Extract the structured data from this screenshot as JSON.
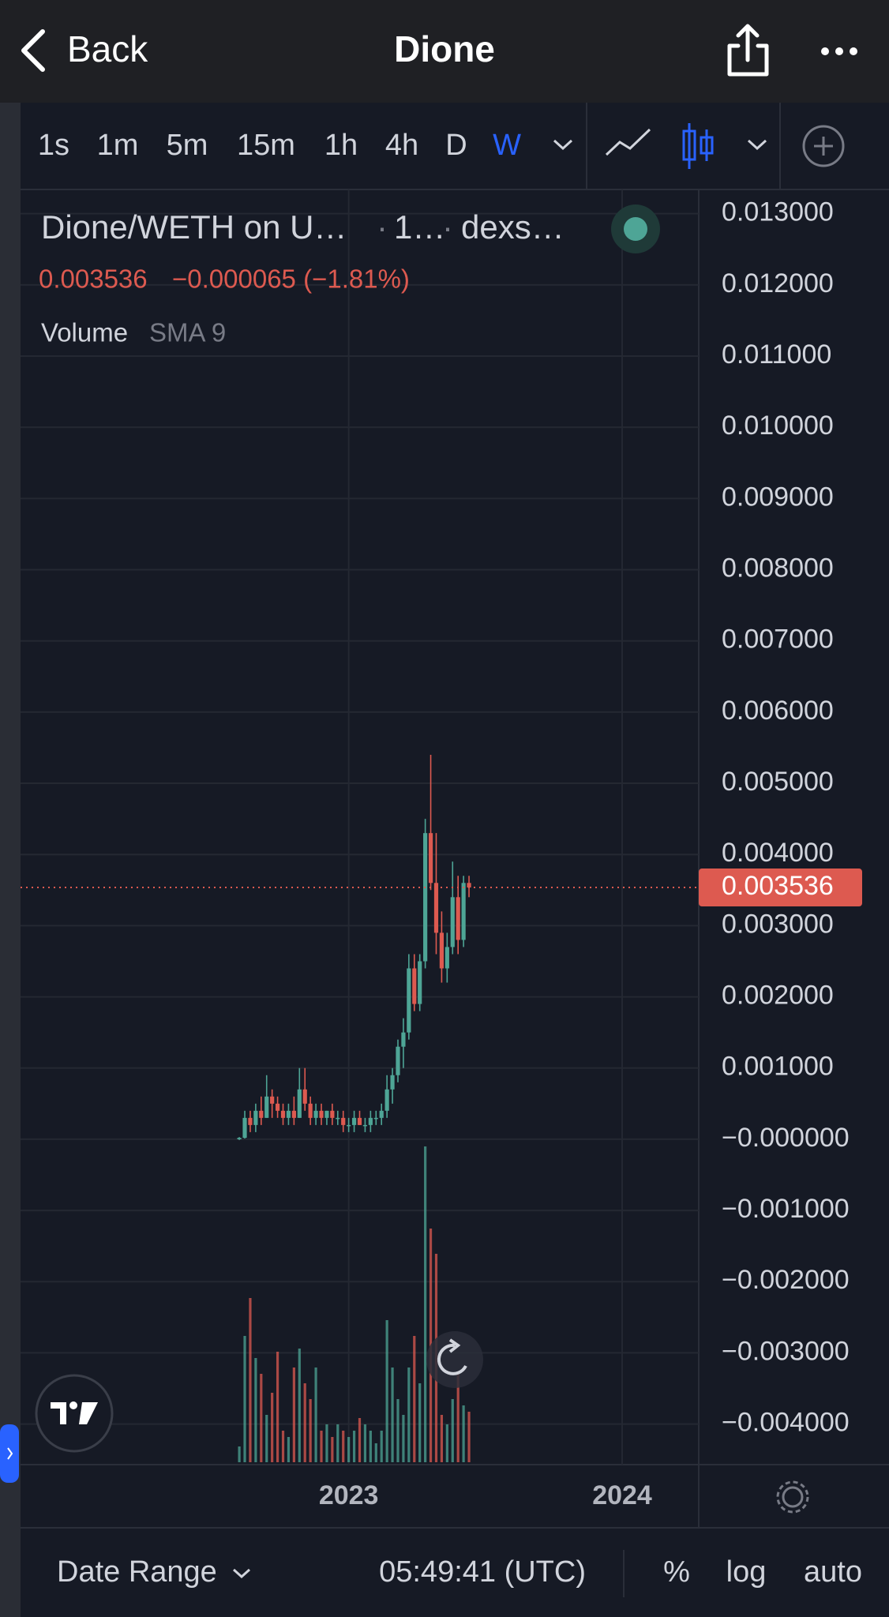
{
  "nav": {
    "back": "Back",
    "title": "Dione"
  },
  "toolbar": {
    "intervals": [
      "1s",
      "1m",
      "5m",
      "15m",
      "1h",
      "4h",
      "D",
      "W"
    ],
    "active_index": 7
  },
  "legend": {
    "symbol": "Dione/WETH on U…",
    "interval": "1…",
    "exchange": "dexs…",
    "change": "−0.000065 (−1.81%)",
    "indicator": "Volume",
    "indicator_params": "SMA 9"
  },
  "chart_data": {
    "type": "candlestick",
    "x": [
      2022.6,
      2022.62,
      2022.64,
      2022.66,
      2022.68,
      2022.7,
      2022.72,
      2022.74,
      2022.76,
      2022.78,
      2022.8,
      2022.82,
      2022.84,
      2022.86,
      2022.88,
      2022.9,
      2022.92,
      2022.94,
      2022.96,
      2022.98,
      2023.0,
      2023.02,
      2023.04,
      2023.06,
      2023.08,
      2023.1,
      2023.12,
      2023.14,
      2023.16,
      2023.18,
      2023.2,
      2023.22,
      2023.24,
      2023.26,
      2023.28,
      2023.3,
      2023.32,
      2023.34,
      2023.36,
      2023.38,
      2023.4,
      2023.42,
      2023.44
    ],
    "open": [
      0,
      2e-05,
      0.0003,
      0.0002,
      0.0004,
      0.0003,
      0.0006,
      0.0005,
      0.0004,
      0.0003,
      0.0004,
      0.0003,
      0.0007,
      0.0005,
      0.0003,
      0.0004,
      0.0003,
      0.0004,
      0.0003,
      0.0003,
      0.0002,
      0.0002,
      0.0003,
      0.0002,
      0.0002,
      0.0003,
      0.0003,
      0.0004,
      0.0007,
      0.0009,
      0.0013,
      0.0015,
      0.0024,
      0.0019,
      0.0025,
      0.0043,
      0.0036,
      0.0029,
      0.0024,
      0.0027,
      0.0034,
      0.0028,
      0.0036
    ],
    "high": [
      3e-05,
      0.0004,
      0.0004,
      0.0005,
      0.0006,
      0.0009,
      0.0007,
      0.0006,
      0.0005,
      0.0005,
      0.0006,
      0.001,
      0.001,
      0.0006,
      0.0005,
      0.0005,
      0.0004,
      0.0005,
      0.0004,
      0.0004,
      0.0003,
      0.0004,
      0.0004,
      0.0003,
      0.0004,
      0.0004,
      0.0005,
      0.0009,
      0.001,
      0.0014,
      0.0017,
      0.0026,
      0.0026,
      0.0026,
      0.0045,
      0.0054,
      0.0043,
      0.0032,
      0.0029,
      0.0039,
      0.0037,
      0.0037,
      0.0037
    ],
    "low": [
      -1e-05,
      1e-05,
      0.0001,
      0.0001,
      0.0002,
      0.0003,
      0.0003,
      0.0003,
      0.0002,
      0.0002,
      0.0002,
      0.0003,
      0.0004,
      0.0002,
      0.0002,
      0.0002,
      0.0002,
      0.0002,
      0.0002,
      0.0001,
      0.0001,
      0.0001,
      0.0002,
      0.0001,
      0.0001,
      0.0002,
      0.0002,
      0.0003,
      0.0005,
      0.0008,
      0.001,
      0.0014,
      0.0018,
      0.0018,
      0.0024,
      0.0035,
      0.0026,
      0.0022,
      0.0022,
      0.0026,
      0.0026,
      0.0027,
      0.0034
    ],
    "close": [
      2e-05,
      0.0003,
      0.0002,
      0.0004,
      0.0003,
      0.0006,
      0.0005,
      0.0004,
      0.0003,
      0.0004,
      0.0003,
      0.0007,
      0.0005,
      0.0003,
      0.0004,
      0.0003,
      0.0004,
      0.0003,
      0.0003,
      0.0002,
      0.0002,
      0.0003,
      0.0002,
      0.0002,
      0.0003,
      0.0003,
      0.0004,
      0.0007,
      0.0009,
      0.0013,
      0.0015,
      0.0024,
      0.0019,
      0.0025,
      0.0043,
      0.0036,
      0.0029,
      0.0024,
      0.0027,
      0.0034,
      0.0028,
      0.0036,
      0.003536
    ],
    "volume": [
      5,
      40,
      52,
      33,
      28,
      15,
      22,
      35,
      10,
      8,
      30,
      36,
      25,
      20,
      30,
      10,
      12,
      8,
      12,
      10,
      8,
      10,
      14,
      12,
      10,
      6,
      10,
      45,
      30,
      20,
      15,
      30,
      40,
      25,
      100,
      74,
      66,
      15,
      12,
      20,
      28,
      18,
      16
    ],
    "up_color": "#4ea596",
    "down_color": "#dd5a50",
    "last_price": 0.003536,
    "xlim": [
      2021.8,
      2024.28
    ],
    "xticks": [
      2023,
      2024
    ],
    "ylim": [
      -0.00457,
      0.01334
    ],
    "yticks": [
      {
        "value": 0.013,
        "label": "0.013000"
      },
      {
        "value": 0.012,
        "label": "0.012000"
      },
      {
        "value": 0.011,
        "label": "0.011000"
      },
      {
        "value": 0.01,
        "label": "0.010000"
      },
      {
        "value": 0.009,
        "label": "0.009000"
      },
      {
        "value": 0.008,
        "label": "0.008000"
      },
      {
        "value": 0.007,
        "label": "0.007000"
      },
      {
        "value": 0.006,
        "label": "0.006000"
      },
      {
        "value": 0.005,
        "label": "0.005000"
      },
      {
        "value": 0.004,
        "label": "0.004000"
      },
      {
        "value": 0.003,
        "label": "0.003000"
      },
      {
        "value": 0.002,
        "label": "0.002000"
      },
      {
        "value": 0.001,
        "label": "0.001000"
      },
      {
        "value": 0,
        "label": "−0.000000"
      },
      {
        "value": -0.001,
        "label": "−0.001000"
      },
      {
        "value": -0.002,
        "label": "−0.002000"
      },
      {
        "value": -0.003,
        "label": "−0.003000"
      },
      {
        "value": -0.004,
        "label": "−0.004000"
      }
    ],
    "grid": true
  },
  "footer": {
    "date_range": "Date Range",
    "time": "05:49:41 (UTC)",
    "percent": "%",
    "log": "log",
    "auto": "auto"
  }
}
